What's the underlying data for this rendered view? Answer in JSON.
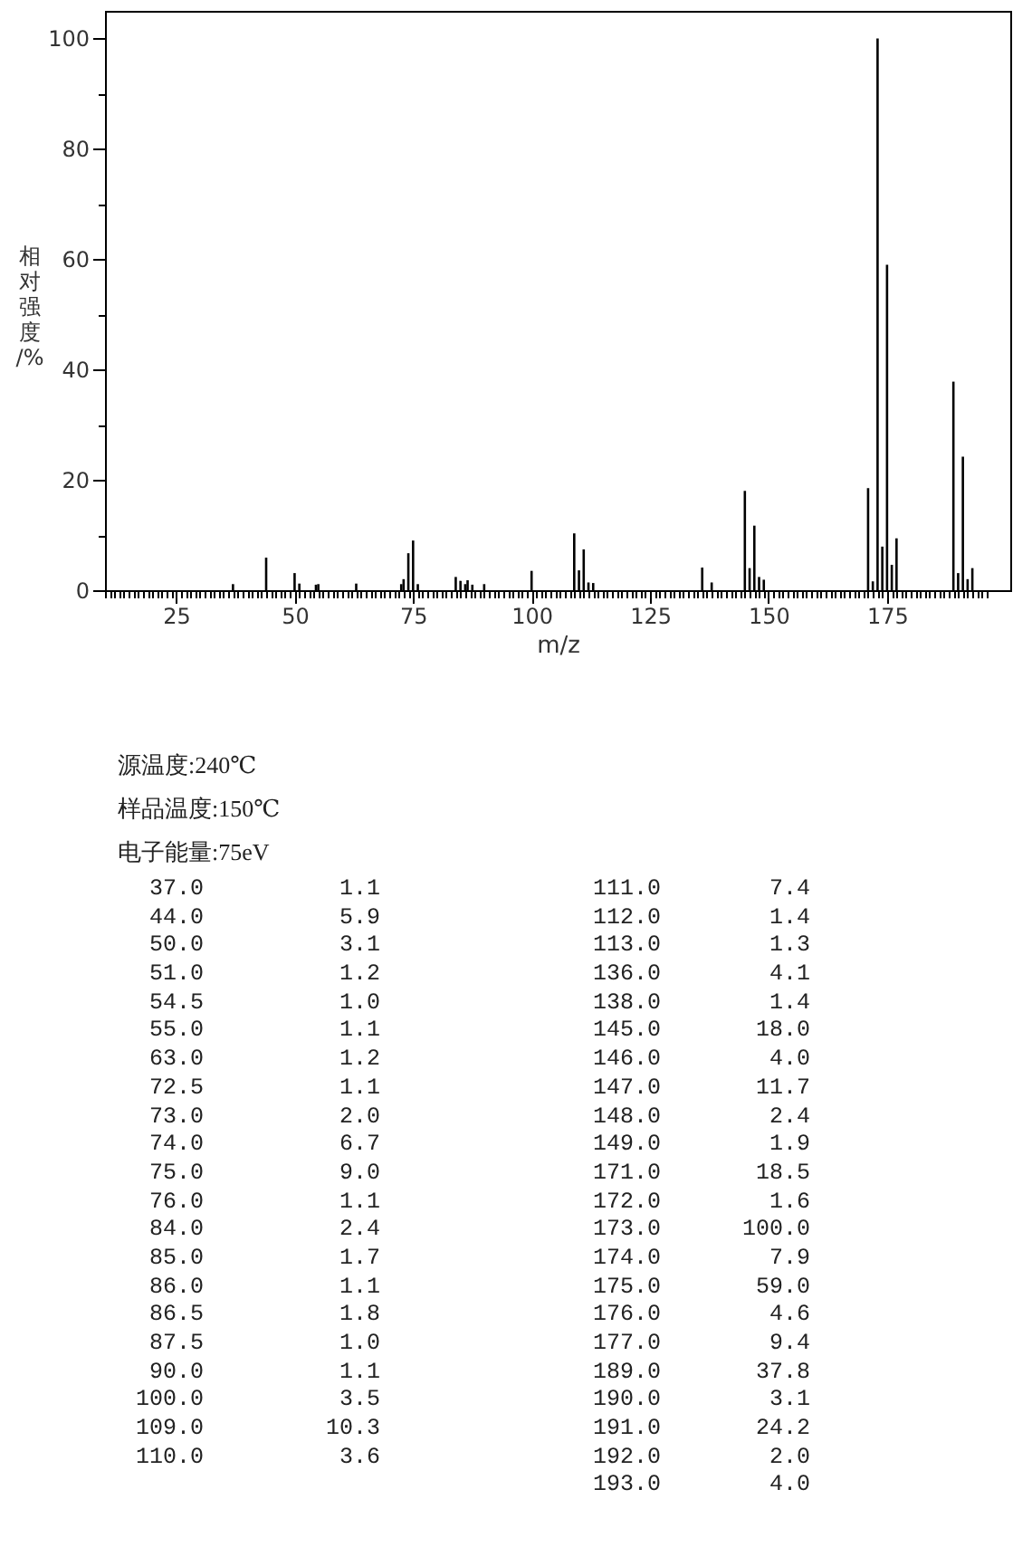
{
  "chart_data": [
    {
      "type": "bar",
      "xlabel": "m/z",
      "ylabel": "相对强度/%",
      "annotations": [
        "源温度:240℃",
        "样品温度:150℃",
        "电子能量:75eV"
      ],
      "x": [
        37,
        44,
        50,
        51,
        54.5,
        55,
        63,
        72.5,
        73,
        74,
        75,
        76,
        84,
        85,
        86,
        86.5,
        87.5,
        90,
        100,
        109,
        110,
        111,
        112,
        113,
        136,
        138,
        145,
        146,
        147,
        148,
        149,
        171,
        172,
        173,
        174,
        175,
        176,
        177,
        189,
        190,
        191,
        192,
        193
      ],
      "values": [
        1.1,
        5.9,
        3.1,
        1.2,
        1.0,
        1.1,
        1.2,
        1.1,
        2.0,
        6.7,
        9.0,
        1.1,
        2.4,
        1.7,
        1.1,
        1.8,
        1.0,
        1.1,
        3.5,
        10.3,
        3.6,
        7.4,
        1.4,
        1.3,
        4.1,
        1.4,
        18.0,
        4.0,
        11.7,
        2.4,
        1.9,
        18.5,
        1.6,
        100.0,
        7.9,
        59.0,
        4.6,
        9.4,
        37.8,
        3.1,
        24.2,
        2.0,
        4.0
      ],
      "color": "#000000",
      "xlim": [
        10,
        201
      ],
      "xticks": [
        {
          "value": 10,
          "label": null
        },
        {
          "value": 11,
          "label": null
        },
        {
          "value": 12,
          "label": null
        },
        {
          "value": 13,
          "label": null
        },
        {
          "value": 14,
          "label": null
        },
        {
          "value": 15,
          "label": null
        },
        {
          "value": 16,
          "label": null
        },
        {
          "value": 17,
          "label": null
        },
        {
          "value": 18,
          "label": null
        },
        {
          "value": 19,
          "label": null
        },
        {
          "value": 20,
          "label": null
        },
        {
          "value": 21,
          "label": null
        },
        {
          "value": 22,
          "label": null
        },
        {
          "value": 23,
          "label": null
        },
        {
          "value": 24,
          "label": null
        },
        25,
        {
          "value": 26,
          "label": null
        },
        {
          "value": 27,
          "label": null
        },
        {
          "value": 28,
          "label": null
        },
        {
          "value": 29,
          "label": null
        },
        {
          "value": 30,
          "label": null
        },
        {
          "value": 31,
          "label": null
        },
        {
          "value": 32,
          "label": null
        },
        {
          "value": 33,
          "label": null
        },
        {
          "value": 34,
          "label": null
        },
        {
          "value": 35,
          "label": null
        },
        {
          "value": 36,
          "label": null
        },
        {
          "value": 37,
          "label": null
        },
        {
          "value": 38,
          "label": null
        },
        {
          "value": 39,
          "label": null
        },
        {
          "value": 40,
          "label": null
        },
        {
          "value": 41,
          "label": null
        },
        {
          "value": 42,
          "label": null
        },
        {
          "value": 43,
          "label": null
        },
        {
          "value": 44,
          "label": null
        },
        {
          "value": 45,
          "label": null
        },
        {
          "value": 46,
          "label": null
        },
        {
          "value": 47,
          "label": null
        },
        {
          "value": 48,
          "label": null
        },
        {
          "value": 49,
          "label": null
        },
        50,
        {
          "value": 51,
          "label": null
        },
        {
          "value": 52,
          "label": null
        },
        {
          "value": 53,
          "label": null
        },
        {
          "value": 54,
          "label": null
        },
        {
          "value": 55,
          "label": null
        },
        {
          "value": 56,
          "label": null
        },
        {
          "value": 57,
          "label": null
        },
        {
          "value": 58,
          "label": null
        },
        {
          "value": 59,
          "label": null
        },
        {
          "value": 60,
          "label": null
        },
        {
          "value": 61,
          "label": null
        },
        {
          "value": 62,
          "label": null
        },
        {
          "value": 63,
          "label": null
        },
        {
          "value": 64,
          "label": null
        },
        {
          "value": 65,
          "label": null
        },
        {
          "value": 66,
          "label": null
        },
        {
          "value": 67,
          "label": null
        },
        {
          "value": 68,
          "label": null
        },
        {
          "value": 69,
          "label": null
        },
        {
          "value": 70,
          "label": null
        },
        {
          "value": 71,
          "label": null
        },
        {
          "value": 72,
          "label": null
        },
        {
          "value": 73,
          "label": null
        },
        {
          "value": 74,
          "label": null
        },
        75,
        {
          "value": 76,
          "label": null
        },
        {
          "value": 77,
          "label": null
        },
        {
          "value": 78,
          "label": null
        },
        {
          "value": 79,
          "label": null
        },
        {
          "value": 80,
          "label": null
        },
        {
          "value": 81,
          "label": null
        },
        {
          "value": 82,
          "label": null
        },
        {
          "value": 83,
          "label": null
        },
        {
          "value": 84,
          "label": null
        },
        {
          "value": 85,
          "label": null
        },
        {
          "value": 86,
          "label": null
        },
        {
          "value": 87,
          "label": null
        },
        {
          "value": 88,
          "label": null
        },
        {
          "value": 89,
          "label": null
        },
        {
          "value": 90,
          "label": null
        },
        {
          "value": 91,
          "label": null
        },
        {
          "value": 92,
          "label": null
        },
        {
          "value": 93,
          "label": null
        },
        {
          "value": 94,
          "label": null
        },
        {
          "value": 95,
          "label": null
        },
        {
          "value": 96,
          "label": null
        },
        {
          "value": 97,
          "label": null
        },
        {
          "value": 98,
          "label": null
        },
        {
          "value": 99,
          "label": null
        },
        100,
        {
          "value": 101,
          "label": null
        },
        {
          "value": 102,
          "label": null
        },
        {
          "value": 103,
          "label": null
        },
        {
          "value": 104,
          "label": null
        },
        {
          "value": 105,
          "label": null
        },
        {
          "value": 106,
          "label": null
        },
        {
          "value": 107,
          "label": null
        },
        {
          "value": 108,
          "label": null
        },
        {
          "value": 109,
          "label": null
        },
        {
          "value": 110,
          "label": null
        },
        {
          "value": 111,
          "label": null
        },
        {
          "value": 112,
          "label": null
        },
        {
          "value": 113,
          "label": null
        },
        {
          "value": 114,
          "label": null
        },
        {
          "value": 115,
          "label": null
        },
        {
          "value": 116,
          "label": null
        },
        {
          "value": 117,
          "label": null
        },
        {
          "value": 118,
          "label": null
        },
        {
          "value": 119,
          "label": null
        },
        {
          "value": 120,
          "label": null
        },
        {
          "value": 121,
          "label": null
        },
        {
          "value": 122,
          "label": null
        },
        {
          "value": 123,
          "label": null
        },
        {
          "value": 124,
          "label": null
        },
        125,
        {
          "value": 126,
          "label": null
        },
        {
          "value": 127,
          "label": null
        },
        {
          "value": 128,
          "label": null
        },
        {
          "value": 129,
          "label": null
        },
        {
          "value": 130,
          "label": null
        },
        {
          "value": 131,
          "label": null
        },
        {
          "value": 132,
          "label": null
        },
        {
          "value": 133,
          "label": null
        },
        {
          "value": 134,
          "label": null
        },
        {
          "value": 135,
          "label": null
        },
        {
          "value": 136,
          "label": null
        },
        {
          "value": 137,
          "label": null
        },
        {
          "value": 138,
          "label": null
        },
        {
          "value": 139,
          "label": null
        },
        {
          "value": 140,
          "label": null
        },
        {
          "value": 141,
          "label": null
        },
        {
          "value": 142,
          "label": null
        },
        {
          "value": 143,
          "label": null
        },
        {
          "value": 144,
          "label": null
        },
        {
          "value": 145,
          "label": null
        },
        {
          "value": 146,
          "label": null
        },
        {
          "value": 147,
          "label": null
        },
        {
          "value": 148,
          "label": null
        },
        {
          "value": 149,
          "label": null
        },
        150,
        {
          "value": 151,
          "label": null
        },
        {
          "value": 152,
          "label": null
        },
        {
          "value": 153,
          "label": null
        },
        {
          "value": 154,
          "label": null
        },
        {
          "value": 155,
          "label": null
        },
        {
          "value": 156,
          "label": null
        },
        {
          "value": 157,
          "label": null
        },
        {
          "value": 158,
          "label": null
        },
        {
          "value": 159,
          "label": null
        },
        {
          "value": 160,
          "label": null
        },
        {
          "value": 161,
          "label": null
        },
        {
          "value": 162,
          "label": null
        },
        {
          "value": 163,
          "label": null
        },
        {
          "value": 164,
          "label": null
        },
        {
          "value": 165,
          "label": null
        },
        {
          "value": 166,
          "label": null
        },
        {
          "value": 167,
          "label": null
        },
        {
          "value": 168,
          "label": null
        },
        {
          "value": 169,
          "label": null
        },
        {
          "value": 170,
          "label": null
        },
        {
          "value": 171,
          "label": null
        },
        {
          "value": 172,
          "label": null
        },
        {
          "value": 173,
          "label": null
        },
        {
          "value": 174,
          "label": null
        },
        175,
        {
          "value": 176,
          "label": null
        },
        {
          "value": 177,
          "label": null
        },
        {
          "value": 178,
          "label": null
        },
        {
          "value": 179,
          "label": null
        },
        {
          "value": 180,
          "label": null
        },
        {
          "value": 181,
          "label": null
        },
        {
          "value": 182,
          "label": null
        },
        {
          "value": 183,
          "label": null
        },
        {
          "value": 184,
          "label": null
        },
        {
          "value": 185,
          "label": null
        },
        {
          "value": 186,
          "label": null
        },
        {
          "value": 187,
          "label": null
        },
        {
          "value": 188,
          "label": null
        },
        {
          "value": 189,
          "label": null
        },
        {
          "value": 190,
          "label": null
        },
        {
          "value": 191,
          "label": null
        },
        {
          "value": 192,
          "label": null
        },
        {
          "value": 193,
          "label": null
        },
        {
          "value": 194,
          "label": null
        },
        {
          "value": 195,
          "label": null
        },
        {
          "value": 196,
          "label": null
        }
      ],
      "ylim": [
        0,
        105
      ],
      "yticks": [
        0,
        {
          "value": 10,
          "label": null
        },
        20,
        {
          "value": 30,
          "label": null
        },
        40,
        {
          "value": 50,
          "label": null
        },
        60,
        {
          "value": 70,
          "label": null
        },
        80,
        {
          "value": 90,
          "label": null
        },
        100
      ]
    },
    {
      "type": "other",
      "annotations": [
        "37.0",
        "1.1",
        "44.0",
        "5.9",
        "50.0",
        "3.1",
        "51.0",
        "1.2",
        "54.5",
        "1.0",
        "55.0",
        "1.1",
        "63.0",
        "1.2",
        "72.5",
        "1.1",
        "73.0",
        "2.0",
        "74.0",
        "6.7",
        "75.0",
        "9.0",
        "76.0",
        "1.1",
        "84.0",
        "2.4",
        "85.0",
        "1.7",
        "86.0",
        "1.1",
        "86.5",
        "1.8",
        "87.5",
        "1.0",
        "90.0",
        "1.1",
        "100.0",
        "3.5",
        "109.0",
        "10.3",
        "110.0",
        "3.6"
      ]
    },
    {
      "type": "other",
      "annotations": [
        "111.0",
        "7.4",
        "112.0",
        "1.4",
        "113.0",
        "1.3",
        "136.0",
        "4.1",
        "138.0",
        "1.4",
        "145.0",
        "18.0",
        "146.0",
        "4.0",
        "147.0",
        "11.7",
        "148.0",
        "2.4",
        "149.0",
        "1.9",
        "171.0",
        "18.5",
        "172.0",
        "1.6",
        "173.0",
        "100.0",
        "174.0",
        "7.9",
        "175.0",
        "59.0",
        "176.0",
        "4.6",
        "177.0",
        "9.4",
        "189.0",
        "37.8",
        "190.0",
        "3.1",
        "191.0",
        "24.2",
        "192.0",
        "2.0",
        "193.0",
        "4.0"
      ]
    }
  ]
}
